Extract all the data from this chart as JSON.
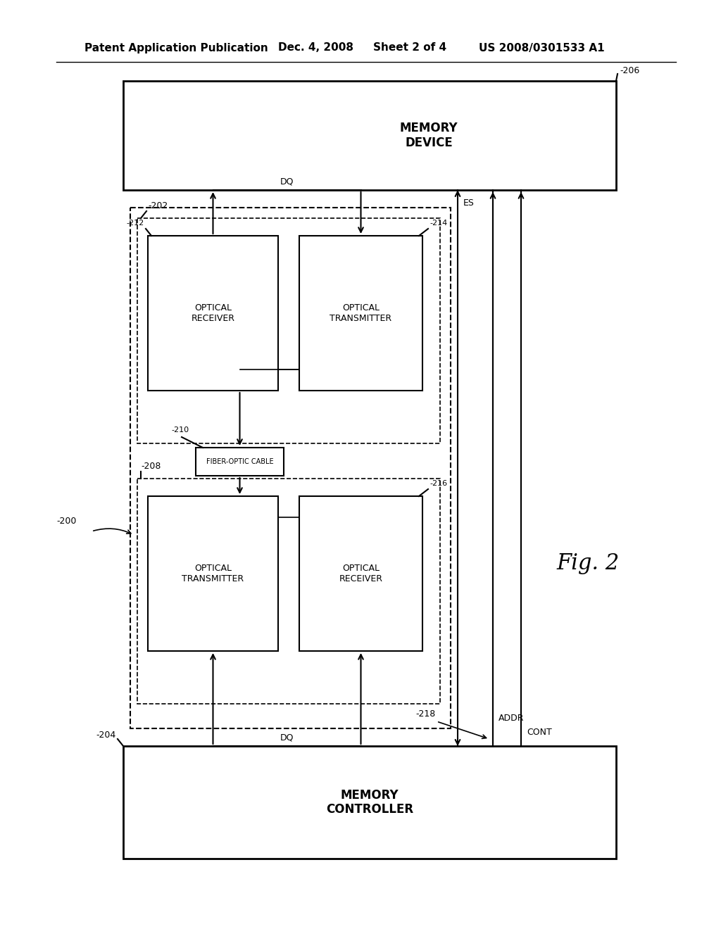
{
  "bg_color": "#ffffff",
  "header_text": "Patent Application Publication",
  "header_date": "Dec. 4, 2008",
  "header_sheet": "Sheet 2 of 4",
  "header_patent": "US 2008/0301533 A1",
  "fig_label": "Fig. 2",
  "labels": {
    "memory_device": "MEMORY\nDEVICE",
    "memory_controller": "MEMORY\nCONTROLLER",
    "optical_receiver_top": "OPTICAL\nRECEIVER",
    "optical_transmitter_top": "OPTICAL\nTRANSMITTER",
    "fiber_optic_cable": "FIBER-OPTIC CABLE",
    "optical_transmitter_bot": "OPTICAL\nTRANSMITTER",
    "optical_receiver_bot": "OPTICAL\nRECEIVER",
    "dq_top": "DQ",
    "dq_bot": "DQ",
    "es": "ES",
    "addr": "ADDR",
    "cont": "CONT"
  }
}
